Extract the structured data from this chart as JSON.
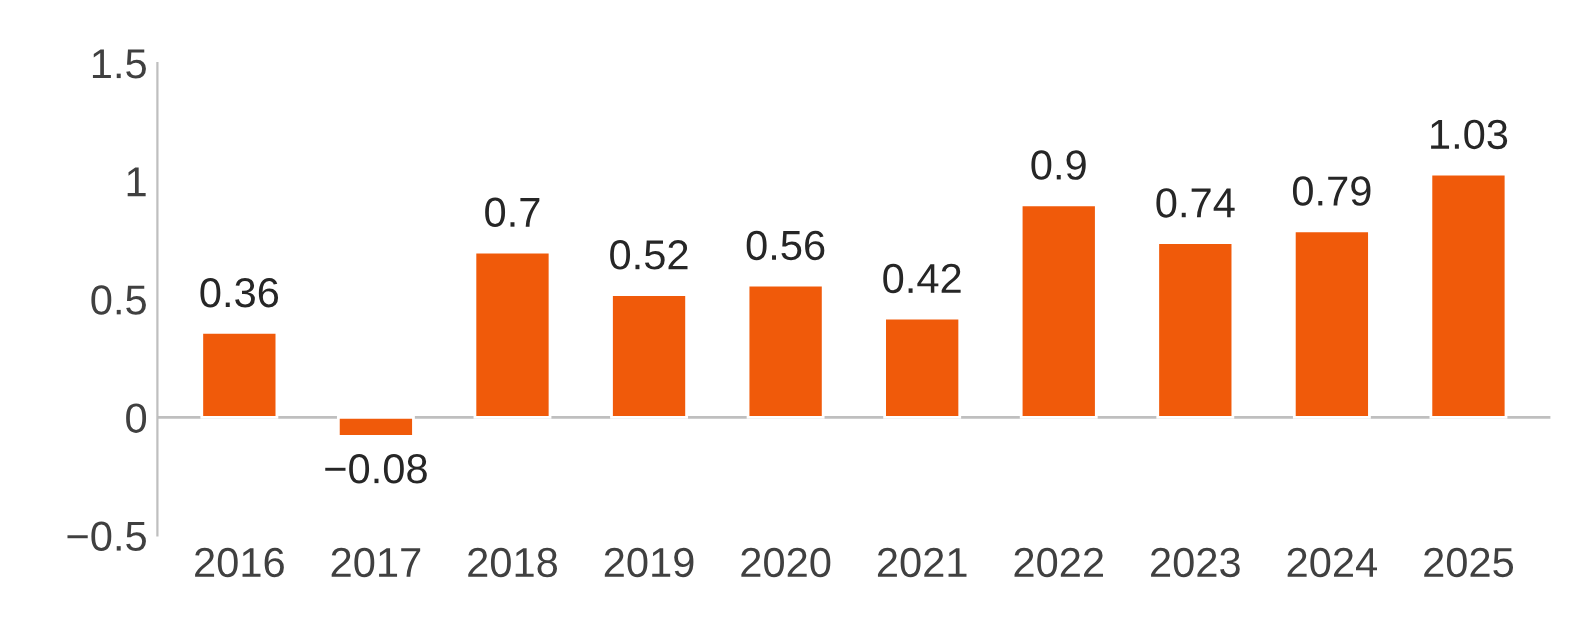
{
  "chart_data": {
    "type": "bar",
    "categories": [
      "2016",
      "2017",
      "2018",
      "2019",
      "2020",
      "2021",
      "2022",
      "2023",
      "2024",
      "2025"
    ],
    "values": [
      0.36,
      -0.08,
      0.7,
      0.52,
      0.56,
      0.42,
      0.9,
      0.74,
      0.79,
      1.03
    ],
    "value_labels": [
      "0.36",
      "−0.08",
      "0.7",
      "0.52",
      "0.56",
      "0.42",
      "0.9",
      "0.74",
      "0.79",
      "1.03"
    ],
    "color": "#f05a0a",
    "ylim": [
      -0.5,
      1.5
    ],
    "yticks": [
      {
        "value": -0.5,
        "label": "−0.5"
      },
      0,
      0.5,
      1,
      1.5
    ],
    "ref_lines": [
      {
        "axis": "y",
        "value": 0,
        "color": "#bfbfbf"
      }
    ]
  }
}
